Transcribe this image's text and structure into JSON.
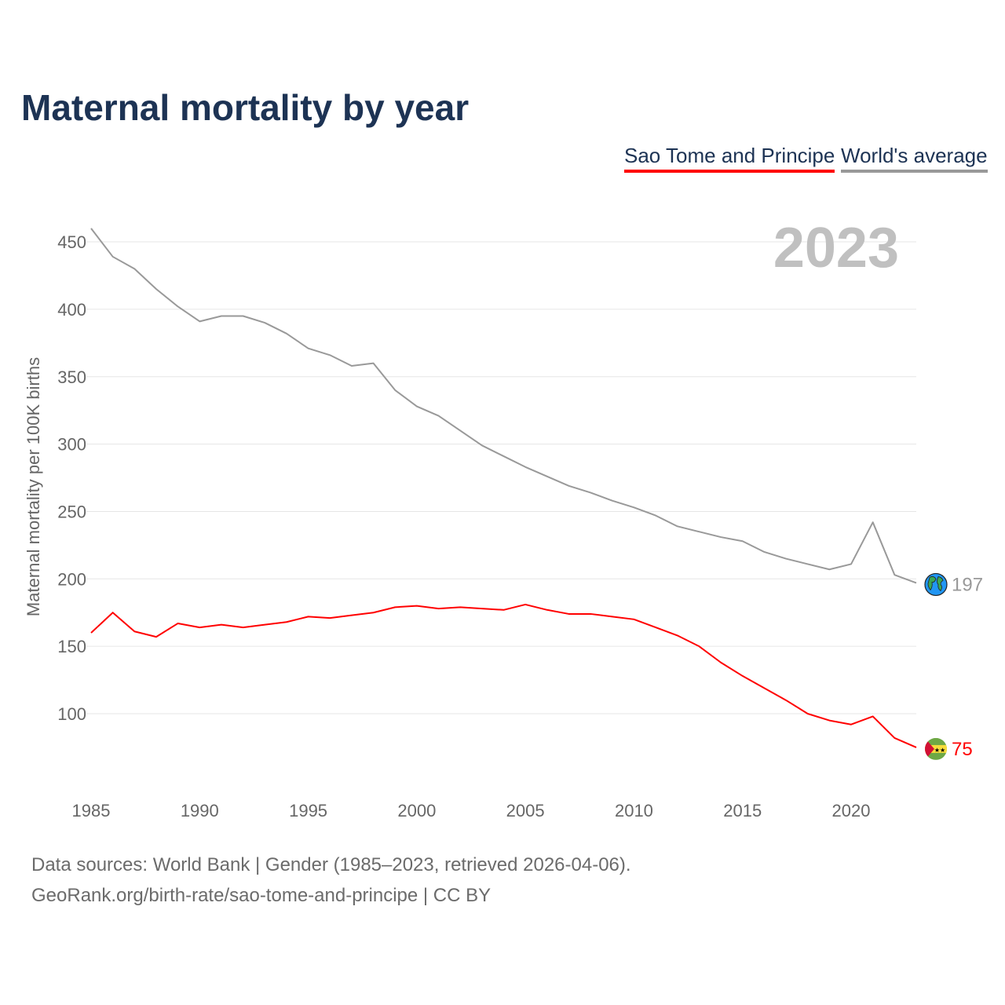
{
  "chart_data": {
    "type": "line",
    "title": "Maternal mortality by year",
    "xlabel": "",
    "ylabel": "Maternal mortality per 100K births",
    "year_watermark": "2023",
    "x": [
      1985,
      1986,
      1987,
      1988,
      1989,
      1990,
      1991,
      1992,
      1993,
      1994,
      1995,
      1996,
      1997,
      1998,
      1999,
      2000,
      2001,
      2002,
      2003,
      2004,
      2005,
      2006,
      2007,
      2008,
      2009,
      2010,
      2011,
      2012,
      2013,
      2014,
      2015,
      2016,
      2017,
      2018,
      2019,
      2020,
      2021,
      2022,
      2023
    ],
    "xlim": [
      1985,
      2023
    ],
    "ylim": [
      50,
      470
    ],
    "x_ticks": [
      "1985",
      "1990",
      "1995",
      "2000",
      "2005",
      "2010",
      "2015",
      "2020"
    ],
    "y_ticks": [
      "100",
      "150",
      "200",
      "250",
      "300",
      "350",
      "400",
      "450"
    ],
    "grid": true,
    "legend_placement": "top-right",
    "series": [
      {
        "name": "Sao Tome and Principe",
        "color": "#ff0000",
        "end_label": "75",
        "icon": "sao-tome-flag-icon",
        "values": [
          160,
          175,
          161,
          157,
          167,
          164,
          166,
          164,
          166,
          168,
          172,
          171,
          173,
          175,
          179,
          180,
          178,
          179,
          178,
          177,
          181,
          177,
          174,
          174,
          172,
          170,
          164,
          158,
          150,
          138,
          128,
          119,
          110,
          100,
          95,
          92,
          98,
          82,
          75
        ]
      },
      {
        "name": "World's average",
        "color": "#999999",
        "end_label": "197",
        "icon": "globe-icon",
        "values": [
          460,
          439,
          430,
          415,
          402,
          391,
          395,
          395,
          390,
          382,
          371,
          366,
          358,
          360,
          340,
          328,
          321,
          310,
          299,
          291,
          283,
          276,
          269,
          264,
          258,
          253,
          247,
          239,
          235,
          231,
          228,
          220,
          215,
          211,
          207,
          211,
          242,
          203,
          197
        ]
      }
    ]
  },
  "footer": {
    "line1": "Data sources: World Bank | Gender (1985–2023, retrieved 2026-04-06).",
    "line2": "GeoRank.org/birth-rate/sao-tome-and-principe | CC BY"
  }
}
